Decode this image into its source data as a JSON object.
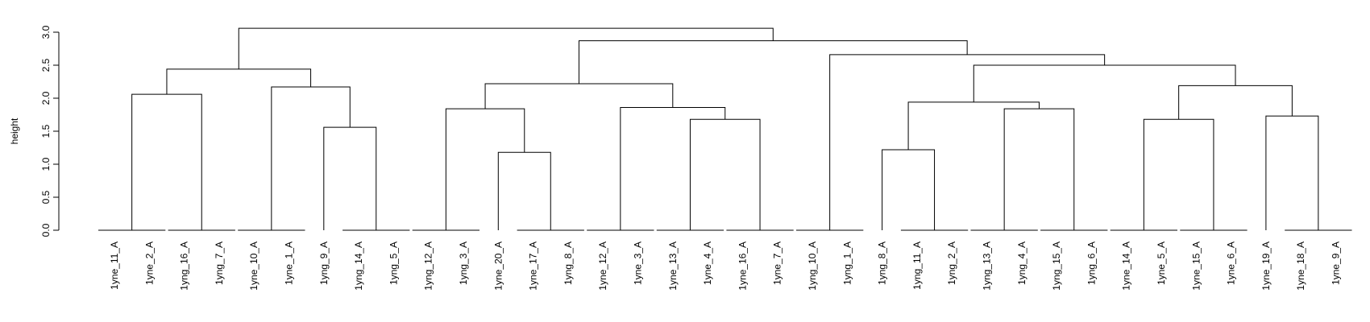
{
  "chart_data": {
    "type": "dendrogram",
    "ylabel": "height",
    "ylim": [
      0,
      3.25
    ],
    "y_ticks": [
      0.0,
      0.5,
      1.0,
      1.5,
      2.0,
      2.5,
      3.0
    ],
    "y_tick_labels": [
      "0.0",
      "0.5",
      "1.0",
      "1.5",
      "2.0",
      "2.5",
      "3.0"
    ],
    "grid": false,
    "leaves": [
      "1yne_11_A",
      "1yne_2_A",
      "1yng_16_A",
      "1yng_7_A",
      "1yne_10_A",
      "1yne_1_A",
      "1yng_9_A",
      "1yng_14_A",
      "1yng_5_A",
      "1yng_12_A",
      "1yng_3_A",
      "1yne_20_A",
      "1yne_17_A",
      "1yng_8_A",
      "1yne_12_A",
      "1yne_3_A",
      "1yne_13_A",
      "1yne_4_A",
      "1yne_16_A",
      "1yne_7_A",
      "1yng_10_A",
      "1yng_1_A",
      "1yng_8_A",
      "1yng_11_A",
      "1yng_2_A",
      "1yng_13_A",
      "1yng_4_A",
      "1yng_15_A",
      "1yng_6_A",
      "1yne_14_A",
      "1yne_5_A",
      "1yne_15_A",
      "1yne_6_A",
      "1yne_19_A",
      "1yne_18_A",
      "1yne_9_A"
    ],
    "merges": [
      {
        "id": "m1",
        "left": 0,
        "right": 1,
        "height": 0.0
      },
      {
        "id": "m2",
        "left": 2,
        "right": 3,
        "height": 0.0
      },
      {
        "id": "m3",
        "left": "m1",
        "right": "m2",
        "height": 2.06
      },
      {
        "id": "m4",
        "left": 4,
        "right": 5,
        "height": 0.0
      },
      {
        "id": "m5",
        "left": 7,
        "right": 8,
        "height": 0.0
      },
      {
        "id": "m6",
        "left": 6,
        "right": "m5",
        "height": 1.56
      },
      {
        "id": "m7",
        "left": "m4",
        "right": "m6",
        "height": 2.17
      },
      {
        "id": "m8",
        "left": "m3",
        "right": "m7",
        "height": 2.44
      },
      {
        "id": "m9",
        "left": 9,
        "right": 10,
        "height": 0.0
      },
      {
        "id": "m10",
        "left": 12,
        "right": 13,
        "height": 0.0
      },
      {
        "id": "m11",
        "left": 11,
        "right": "m10",
        "height": 1.18
      },
      {
        "id": "m12",
        "left": "m9",
        "right": "m11",
        "height": 1.84
      },
      {
        "id": "m13",
        "left": 14,
        "right": 15,
        "height": 0.0
      },
      {
        "id": "m14",
        "left": 16,
        "right": 17,
        "height": 0.0
      },
      {
        "id": "m15",
        "left": 18,
        "right": 19,
        "height": 0.0
      },
      {
        "id": "m16",
        "left": "m14",
        "right": "m15",
        "height": 1.68
      },
      {
        "id": "m17",
        "left": "m13",
        "right": "m16",
        "height": 1.86
      },
      {
        "id": "m18",
        "left": "m12",
        "right": "m17",
        "height": 2.22
      },
      {
        "id": "m19",
        "left": 20,
        "right": 21,
        "height": 0.0
      },
      {
        "id": "m20",
        "left": 23,
        "right": 24,
        "height": 0.0
      },
      {
        "id": "m21",
        "left": 22,
        "right": "m20",
        "height": 1.22
      },
      {
        "id": "m22",
        "left": 25,
        "right": 26,
        "height": 0.0
      },
      {
        "id": "m23",
        "left": 27,
        "right": 28,
        "height": 0.0
      },
      {
        "id": "m24",
        "left": "m22",
        "right": "m23",
        "height": 1.84
      },
      {
        "id": "m25",
        "left": "m21",
        "right": "m24",
        "height": 1.94
      },
      {
        "id": "m26",
        "left": 29,
        "right": 30,
        "height": 0.0
      },
      {
        "id": "m27",
        "left": 31,
        "right": 32,
        "height": 0.0
      },
      {
        "id": "m28",
        "left": "m26",
        "right": "m27",
        "height": 1.68
      },
      {
        "id": "m29",
        "left": 34,
        "right": 35,
        "height": 0.0
      },
      {
        "id": "m30",
        "left": 33,
        "right": "m29",
        "height": 1.73
      },
      {
        "id": "m31",
        "left": "m28",
        "right": "m30",
        "height": 2.19
      },
      {
        "id": "m32",
        "left": "m25",
        "right": "m31",
        "height": 2.5
      },
      {
        "id": "m33",
        "left": "m19",
        "right": "m32",
        "height": 2.66
      },
      {
        "id": "m34",
        "left": "m18",
        "right": "m33",
        "height": 2.87
      },
      {
        "id": "m35",
        "left": "m8",
        "right": "m34",
        "height": 3.06
      }
    ]
  }
}
